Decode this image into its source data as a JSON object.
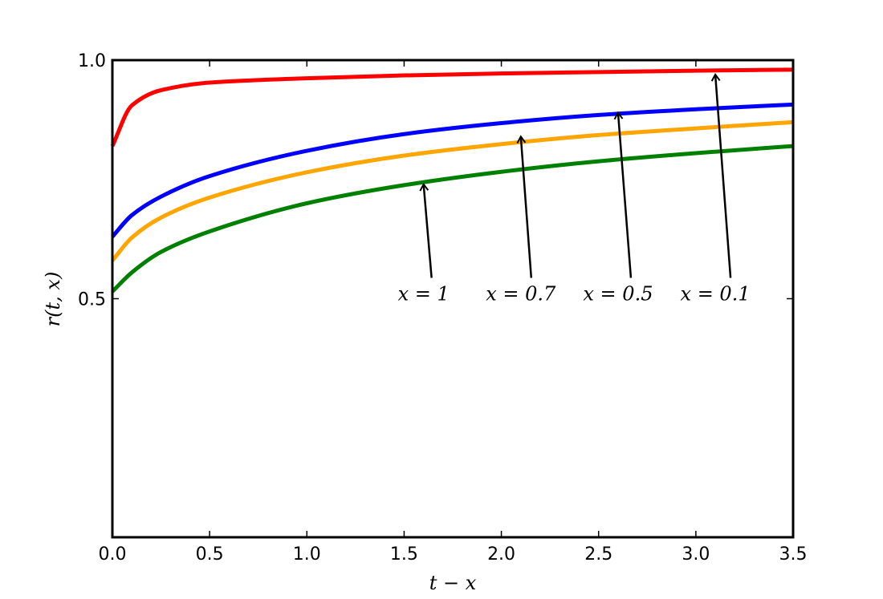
{
  "chart_data": {
    "type": "line",
    "title": "",
    "xlabel": "t − x",
    "ylabel": "r(t, x)",
    "xlim": [
      0.0,
      3.5
    ],
    "ylim": [
      0.0,
      1.0
    ],
    "x_ticks": [
      0.0,
      0.5,
      1.0,
      1.5,
      2.0,
      2.5,
      3.0,
      3.5
    ],
    "x_tick_labels": [
      "0.0",
      "0.5",
      "1.0",
      "1.5",
      "2.0",
      "2.5",
      "3.0",
      "3.5"
    ],
    "y_ticks": [
      0.5,
      1.0
    ],
    "y_tick_labels": [
      "0.5",
      "1.0"
    ],
    "grid": false,
    "legend": "none",
    "x": [
      0.0,
      0.1,
      0.25,
      0.5,
      1.0,
      1.5,
      2.0,
      2.5,
      3.0,
      3.5
    ],
    "series": [
      {
        "param": "x = 0.1",
        "color": "#ff0000",
        "values": [
          0.82,
          0.905,
          0.937,
          0.953,
          0.962,
          0.968,
          0.972,
          0.975,
          0.978,
          0.98
        ]
      },
      {
        "param": "x = 0.5",
        "color": "#0000ff",
        "values": [
          0.63,
          0.675,
          0.714,
          0.757,
          0.81,
          0.845,
          0.868,
          0.885,
          0.897,
          0.907
        ]
      },
      {
        "param": "x = 0.7",
        "color": "#ffa500",
        "values": [
          0.58,
          0.628,
          0.67,
          0.712,
          0.765,
          0.8,
          0.824,
          0.843,
          0.857,
          0.87
        ]
      },
      {
        "param": "x = 1",
        "color": "#008000",
        "values": [
          0.515,
          0.555,
          0.598,
          0.641,
          0.7,
          0.738,
          0.766,
          0.788,
          0.805,
          0.82
        ]
      }
    ],
    "annotations": [
      {
        "text": "x = 1",
        "text_x": 1.6,
        "text_y": 0.5,
        "arrow_x": 1.6,
        "arrow_y": 0.74
      },
      {
        "text": "x = 0.7",
        "text_x": 2.1,
        "text_y": 0.5,
        "arrow_x": 2.1,
        "arrow_y": 0.84
      },
      {
        "text": "x = 0.5",
        "text_x": 2.6,
        "text_y": 0.5,
        "arrow_x": 2.6,
        "arrow_y": 0.89
      },
      {
        "text": "x = 0.1",
        "text_x": 3.1,
        "text_y": 0.5,
        "arrow_x": 3.1,
        "arrow_y": 0.97
      }
    ]
  }
}
